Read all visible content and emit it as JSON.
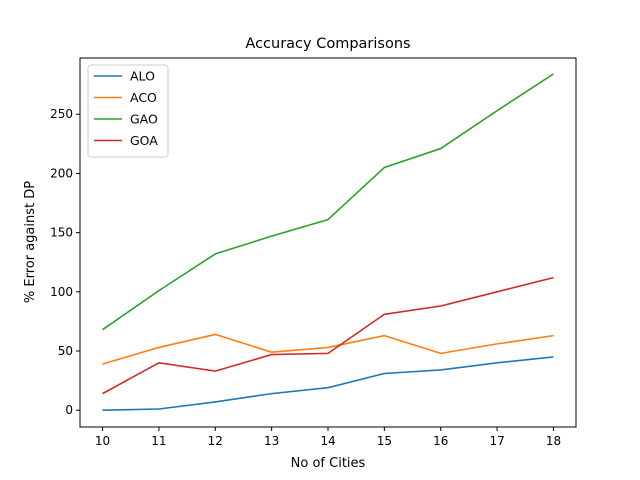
{
  "chart_data": {
    "type": "line",
    "title": "Accuracy Comparisons",
    "xlabel": "No of Cities",
    "ylabel": "% Error against DP",
    "x": [
      10,
      11,
      12,
      13,
      14,
      15,
      16,
      17,
      18
    ],
    "xlim": [
      9.6,
      18.4
    ],
    "ylim": [
      -14.2,
      297.5
    ],
    "x_ticks": [
      10,
      11,
      12,
      13,
      14,
      15,
      16,
      17,
      18
    ],
    "y_ticks": [
      0,
      50,
      100,
      150,
      200,
      250
    ],
    "grid": false,
    "legend_position": "top-left",
    "series": [
      {
        "name": "ALO",
        "color": "#1f77b4",
        "values": [
          0,
          1,
          7,
          14,
          19,
          31,
          34,
          40,
          45
        ]
      },
      {
        "name": "ACO",
        "color": "#ff7f0e",
        "values": [
          39,
          53,
          64,
          49,
          53,
          63,
          48,
          56,
          63
        ]
      },
      {
        "name": "GAO",
        "color": "#2ca02c",
        "values": [
          68,
          101,
          132,
          147,
          161,
          205,
          221,
          253,
          284
        ]
      },
      {
        "name": "GOA",
        "color": "#d62728",
        "values": [
          14,
          40,
          33,
          47,
          48,
          81,
          88,
          100,
          112
        ]
      }
    ]
  }
}
